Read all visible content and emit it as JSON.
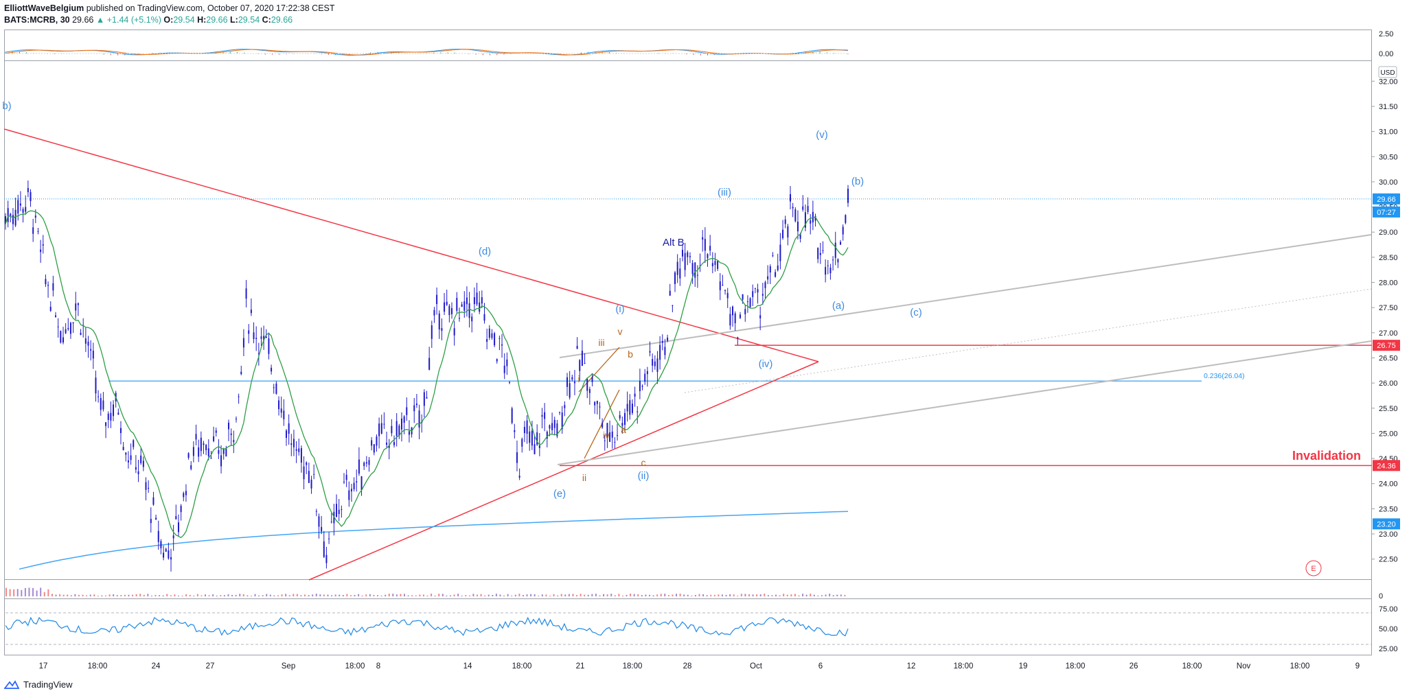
{
  "header": {
    "author": "ElliottWaveBelgium",
    "published": "published on TradingView.com, October 07, 2020 17:22:38 CEST",
    "symbol": "BATS:MCRB, 30",
    "last": "29.66",
    "change": "+1.44 (+5.1%)",
    "o_label": "O:",
    "o": "29.54",
    "h_label": "H:",
    "h": "29.66",
    "l_label": "L:",
    "l": "29.54",
    "c_label": "C:",
    "c": "29.66"
  },
  "footer": {
    "brand": "TradingView"
  },
  "colors": {
    "candle": "#1e19c8",
    "ma": "#2e9e44",
    "ma_long": "#42a5f5",
    "red": "#f23645",
    "grey": "#bdbdbd",
    "wave_blue": "#3d8ae0",
    "wave_orange": "#b5651d",
    "alt": "#1a1aa6"
  },
  "chart_data": {
    "type": "candlestick",
    "ylim": [
      22.1,
      32.4
    ],
    "y_ticks": [
      "32.00",
      "31.50",
      "31.00",
      "30.50",
      "30.00",
      "29.50",
      "29.00",
      "28.50",
      "28.00",
      "27.50",
      "27.00",
      "26.50",
      "26.00",
      "25.50",
      "25.00",
      "24.50",
      "24.00",
      "23.50",
      "23.00",
      "22.50"
    ],
    "currency": "USD",
    "x_ticks": [
      "17",
      "18:00",
      "24",
      "27",
      "Sep",
      "18:00",
      "8",
      "14",
      "18:00",
      "21",
      "18:00",
      "28",
      "Oct",
      "6",
      "12",
      "18:00",
      "19",
      "18:00",
      "26",
      "18:00",
      "Nov",
      "18:00",
      "9"
    ],
    "price_path": [
      [
        0,
        29.3
      ],
      [
        3,
        29.7
      ],
      [
        5,
        28.1
      ],
      [
        7,
        27.0
      ],
      [
        9,
        27.6
      ],
      [
        11,
        26.2
      ],
      [
        12,
        25.3
      ],
      [
        14,
        25.6
      ],
      [
        15,
        24.7
      ],
      [
        17,
        24.3
      ],
      [
        19,
        23.0
      ],
      [
        20,
        22.6
      ],
      [
        21,
        22.9
      ],
      [
        22,
        23.6
      ],
      [
        23,
        24.6
      ],
      [
        25,
        24.9
      ],
      [
        27,
        24.5
      ],
      [
        29,
        25.5
      ],
      [
        30,
        27.5
      ],
      [
        31,
        27.1
      ],
      [
        33,
        26.5
      ],
      [
        35,
        25.2
      ],
      [
        36,
        24.6
      ],
      [
        38,
        24.3
      ],
      [
        39,
        23.5
      ],
      [
        40,
        22.6
      ],
      [
        41,
        23.2
      ],
      [
        42,
        23.8
      ],
      [
        44,
        24.1
      ],
      [
        46,
        24.9
      ],
      [
        48,
        24.9
      ],
      [
        50,
        25.2
      ],
      [
        52,
        25.3
      ],
      [
        53,
        26.8
      ],
      [
        54,
        27.5
      ],
      [
        55,
        27.3
      ],
      [
        57,
        27.4
      ],
      [
        59,
        27.6
      ],
      [
        60,
        27.0
      ],
      [
        62,
        26.6
      ],
      [
        63,
        25.7
      ],
      [
        64,
        24.4
      ],
      [
        65,
        25.0
      ],
      [
        66,
        24.6
      ],
      [
        67,
        25.3
      ],
      [
        68,
        25.0
      ],
      [
        69,
        25.2
      ],
      [
        70,
        26.0
      ],
      [
        71,
        26.3
      ],
      [
        72,
        26.4
      ],
      [
        73,
        26.0
      ],
      [
        74,
        25.4
      ],
      [
        75,
        24.9
      ],
      [
        76,
        25.1
      ],
      [
        77,
        25.4
      ],
      [
        78,
        25.6
      ],
      [
        79,
        25.8
      ],
      [
        80,
        26.3
      ],
      [
        81,
        26.5
      ],
      [
        82,
        26.7
      ],
      [
        83,
        27.6
      ],
      [
        84,
        28.4
      ],
      [
        85,
        28.8
      ],
      [
        86,
        28.3
      ],
      [
        87,
        28.8
      ],
      [
        88,
        28.5
      ],
      [
        89,
        28.1
      ],
      [
        90,
        27.6
      ],
      [
        91,
        27.0
      ],
      [
        92,
        27.5
      ],
      [
        93,
        27.7
      ],
      [
        94,
        27.6
      ],
      [
        95,
        28.0
      ],
      [
        96,
        28.3
      ],
      [
        97,
        28.8
      ],
      [
        98,
        29.5
      ],
      [
        99,
        29.2
      ],
      [
        100,
        29.3
      ],
      [
        101,
        28.9
      ],
      [
        102,
        28.6
      ],
      [
        103,
        28.3
      ],
      [
        104,
        28.8
      ],
      [
        105,
        29.7
      ]
    ],
    "volume_scale": "0",
    "rsi_ticks": [
      "75.00",
      "50.00",
      "25.00"
    ],
    "indicator_ticks": [
      "2.50",
      "0.00"
    ],
    "price_labels": [
      {
        "text": "29.66",
        "value": 29.66,
        "color": "#2196f3"
      },
      {
        "text": "07:27",
        "value": 29.4,
        "color": "#2196f3"
      },
      {
        "text": "26.75",
        "value": 26.75,
        "color": "#f23645"
      },
      {
        "text": "24.36",
        "value": 24.36,
        "color": "#f23645"
      },
      {
        "text": "23.20",
        "value": 23.2,
        "color": "#2196f3"
      }
    ],
    "horizontal_levels": [
      {
        "value": 26.75,
        "color": "#f23645"
      },
      {
        "value": 24.36,
        "color": "#f23645"
      },
      {
        "value": 26.04,
        "color": "#2196f3",
        "label": "0.236(26.04)"
      }
    ],
    "annotations": {
      "invalidation": "Invalidation",
      "alt_b": "Alt B",
      "e_badge": "E",
      "waves_blue": [
        "(d)",
        "(e)",
        "(i)",
        "(ii)",
        "(iii)",
        "(iv)",
        "(v)",
        "(a)",
        "(b)",
        "(c)",
        "b)"
      ],
      "waves_orange": [
        "i",
        "ii",
        "iii",
        "iv",
        "v",
        "a",
        "b",
        "c"
      ]
    }
  }
}
